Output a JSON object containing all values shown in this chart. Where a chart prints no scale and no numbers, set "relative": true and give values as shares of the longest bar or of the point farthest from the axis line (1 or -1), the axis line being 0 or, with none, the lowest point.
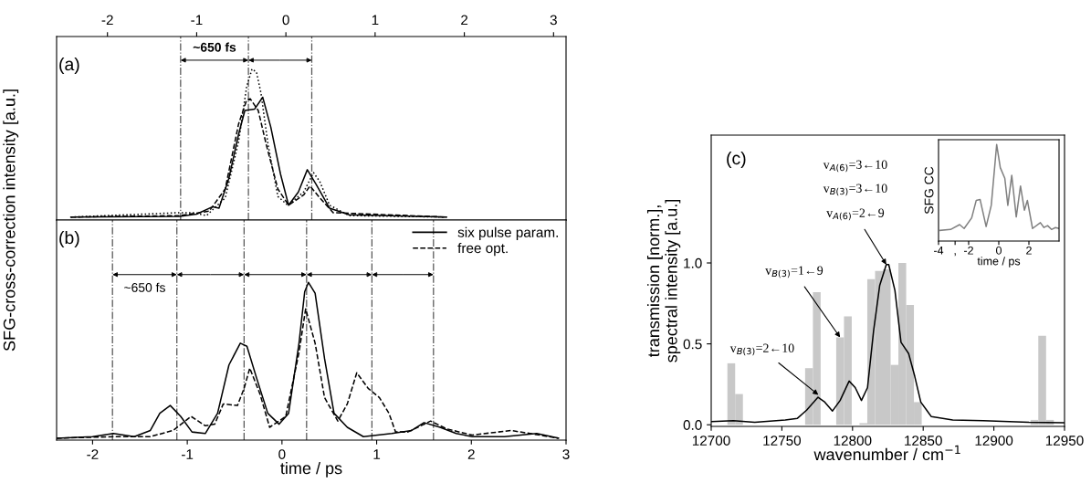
{
  "chart_data": [
    {
      "type": "line",
      "relative": true,
      "xlim": [
        -2.57,
        3.14
      ],
      "xticks": [
        -2,
        -1,
        0,
        1,
        2,
        3
      ],
      "series": [
        {
          "color": "#000000",
          "line_style": "solid",
          "x": [
            -2.41,
            -1.19,
            -1.0,
            -0.82,
            -0.75,
            -0.64,
            -0.53,
            -0.46,
            -0.35,
            -0.26,
            -0.17,
            -0.06,
            0.03,
            0.14,
            0.24,
            0.34,
            0.49,
            0.71,
            1.8
          ],
          "values": [
            0,
            0.005,
            0.02,
            0.07,
            0.06,
            0.26,
            0.56,
            0.72,
            0.73,
            0.81,
            0.61,
            0.29,
            0.08,
            0.17,
            0.32,
            0.22,
            0.06,
            0.016,
            0
          ]
        },
        {
          "color": "#000000",
          "line_style": "dashed",
          "x": [
            -2.41,
            -1.19,
            -0.86,
            -0.68,
            -0.53,
            -0.44,
            -0.4,
            -0.31,
            -0.22,
            -0.09,
            0.03,
            0.2,
            0.27,
            0.38,
            0.53,
            1.8
          ],
          "values": [
            0,
            0.01,
            0.04,
            0.19,
            0.63,
            0.79,
            0.8,
            0.72,
            0.49,
            0.19,
            0.08,
            0.15,
            0.21,
            0.13,
            0.03,
            0
          ]
        },
        {
          "color": "#000000",
          "line_style": "dotted",
          "x": [
            -2.41,
            -1.19,
            -1.04,
            -0.89,
            -0.68,
            -0.53,
            -0.44,
            -0.38,
            -0.33,
            -0.28,
            -0.2,
            -0.09,
            0.02,
            0.2,
            0.31,
            0.38,
            0.49,
            0.71,
            1.8
          ],
          "values": [
            0,
            0.03,
            0.03,
            0.01,
            0.13,
            0.51,
            0.88,
            1.0,
            0.98,
            0.84,
            0.49,
            0.14,
            0.08,
            0.17,
            0.3,
            0.24,
            0.08,
            0.01,
            0
          ]
        }
      ],
      "ref_lines": [
        {
          "axis": "x",
          "value": -1.18,
          "color": "#555555",
          "line_style": "dashdot"
        },
        {
          "axis": "x",
          "value": -0.42,
          "color": "#555555",
          "line_style": "dashdot"
        },
        {
          "axis": "x",
          "value": 0.29,
          "color": "#555555",
          "line_style": "dashdot"
        }
      ],
      "annotations": [
        "(a)",
        "~650 fs"
      ]
    },
    {
      "type": "line",
      "relative": true,
      "xlim": [
        -2.38,
        3.0
      ],
      "xticks": [
        -2,
        -1,
        0,
        1,
        2,
        3
      ],
      "xlabel": "time / ps",
      "ylabel": "SFG-cross-correction intensity [a.u.]",
      "legend": "top right",
      "series": [
        {
          "name": "six pulse param.",
          "color": "#000000",
          "line_style": "solid",
          "x": [
            -2.38,
            -2.0,
            -1.78,
            -1.56,
            -1.39,
            -1.29,
            -1.18,
            -1.07,
            -0.95,
            -0.81,
            -0.68,
            -0.56,
            -0.44,
            -0.37,
            -0.27,
            -0.15,
            -0.03,
            0.07,
            0.18,
            0.24,
            0.28,
            0.35,
            0.45,
            0.55,
            0.69,
            0.86,
            1.16,
            1.37,
            1.5,
            1.67,
            1.84,
            2.01,
            2.35,
            2.69,
            2.92
          ],
          "values": [
            0,
            0.01,
            0.03,
            0.01,
            0.05,
            0.16,
            0.21,
            0.14,
            0.04,
            0.03,
            0.16,
            0.47,
            0.61,
            0.59,
            0.39,
            0.16,
            0.09,
            0.16,
            0.61,
            0.94,
            1.0,
            0.93,
            0.51,
            0.16,
            0.07,
            0.01,
            0.03,
            0.05,
            0.1,
            0.07,
            0.03,
            0.01,
            0.01,
            0.03,
            0
          ]
        },
        {
          "name": "free opt.",
          "color": "#000000",
          "line_style": "dashed",
          "x": [
            -2.38,
            -1.78,
            -1.39,
            -1.15,
            -0.96,
            -0.81,
            -0.71,
            -0.62,
            -0.47,
            -0.4,
            -0.34,
            -0.23,
            -0.13,
            0.04,
            0.18,
            0.25,
            0.35,
            0.45,
            0.59,
            0.69,
            0.79,
            0.91,
            1.03,
            1.13,
            1.2,
            1.33,
            1.57,
            1.74,
            2.01,
            2.42,
            2.62,
            2.92
          ],
          "values": [
            0,
            0.01,
            0.01,
            0.05,
            0.14,
            0.08,
            0.09,
            0.22,
            0.21,
            0.32,
            0.45,
            0.28,
            0.07,
            0.14,
            0.55,
            0.83,
            0.61,
            0.26,
            0.11,
            0.22,
            0.42,
            0.32,
            0.26,
            0.16,
            0.04,
            0.04,
            0.11,
            0.06,
            0.02,
            0.05,
            0.03,
            0
          ]
        }
      ],
      "ref_lines": [
        {
          "axis": "x",
          "value": -1.79,
          "color": "#555555",
          "line_style": "dashdot"
        },
        {
          "axis": "x",
          "value": -1.11,
          "color": "#555555",
          "line_style": "dashdot"
        },
        {
          "axis": "x",
          "value": -0.4,
          "color": "#555555",
          "line_style": "dashdot"
        },
        {
          "axis": "x",
          "value": 0.26,
          "color": "#555555",
          "line_style": "dashdot"
        },
        {
          "axis": "x",
          "value": 0.95,
          "color": "#555555",
          "line_style": "dashdot"
        },
        {
          "axis": "x",
          "value": 1.6,
          "color": "#555555",
          "line_style": "dashdot"
        }
      ],
      "annotations": [
        "(b)",
        "~650 fs"
      ]
    },
    {
      "type": "bar",
      "x": [
        12714.2,
        12719.7,
        12769.2,
        12774.7,
        12791.2,
        12796.7,
        12807.7,
        12813.2,
        12818.7,
        12824.2,
        12829.7,
        12835.2,
        12840.7,
        12846.2,
        12928.7,
        12934.2,
        12939.7
      ],
      "values": [
        0.38,
        0.19,
        0.35,
        0.82,
        0.54,
        0.67,
        0.01,
        0.9,
        0.95,
        0.96,
        0.37,
        1.0,
        0.74,
        0.14,
        0.03,
        0.55,
        0.03
      ],
      "color": "#c8c8c8",
      "series": [
        {
          "type": "line",
          "color": "#000000",
          "x": [
            12700,
            12715.7,
            12730.8,
            12752.4,
            12761,
            12767.5,
            12775.6,
            12780.4,
            12785.8,
            12791.2,
            12797.6,
            12801.9,
            12806.3,
            12810.6,
            12814.9,
            12819.2,
            12823.9,
            12825.6,
            12830,
            12834.3,
            12839.7,
            12844,
            12848.3,
            12855.8,
            12870.9,
            12892.5,
            12924.8,
            12950
          ],
          "values": [
            0.02,
            0.025,
            0.015,
            0.03,
            0.04,
            0.09,
            0.17,
            0.14,
            0.085,
            0.15,
            0.27,
            0.23,
            0.15,
            0.23,
            0.58,
            0.86,
            0.99,
            0.99,
            0.83,
            0.51,
            0.44,
            0.3,
            0.14,
            0.05,
            0.03,
            0.025,
            0.015,
            0.013
          ]
        }
      ],
      "xlim": [
        12700,
        12950
      ],
      "xticks": [
        12700,
        12750,
        12800,
        12850,
        12900,
        12950
      ],
      "ylim": [
        -0.01,
        1.79
      ],
      "yticks": [
        {
          "value": 0,
          "label": "0.0"
        },
        {
          "value": 0.5,
          "label": "0.5"
        },
        {
          "value": 1,
          "label": "1.0"
        }
      ],
      "xlabel": "wavenumber / cm$^{−1}$",
      "ylabel": "transmission [norm.],\nspectral intensity [a.u.]",
      "annotations": [
        "(c)",
        "v$_{A(6)}$=3←10",
        "v$_{B(3)}$=3←10",
        {
          "text": "v$_{A(6)}$=2←9",
          "x": 12823.9,
          "y": 0.99
        },
        {
          "text": "v$_{B(3)}$=1←9",
          "x": 12791.2,
          "y": 0.54
        },
        {
          "text": "v$_{B(3)}$=2←10",
          "x": 12775.8,
          "y": 0.185
        }
      ]
    },
    {
      "type": "line",
      "relative": true,
      "xlim": [
        -4.0,
        4.0
      ],
      "xticks": [
        -4,
        {
          "value": -2.9,
          "label": ","
        },
        -2,
        0,
        2
      ],
      "xlabel": "time / ps",
      "ylabel": "SFG CC",
      "series": [
        {
          "color": "#808080",
          "x": [
            -3.9,
            -3.2,
            -2.6,
            -2.3,
            -1.8,
            -1.5,
            -1.24,
            -0.84,
            -0.5,
            -0.14,
            0.1,
            0.4,
            0.6,
            0.86,
            1.16,
            1.44,
            1.7,
            1.9,
            2.24,
            2.76,
            3.0,
            3.24,
            3.5,
            3.76,
            4.0
          ],
          "values": [
            0.11,
            0.12,
            0.17,
            0.13,
            0.24,
            0.42,
            0.43,
            0.15,
            0.37,
            1.0,
            0.76,
            0.65,
            0.37,
            0.68,
            0.25,
            0.57,
            0.32,
            0.42,
            0.13,
            0.19,
            0.14,
            0.16,
            0.12,
            0.14,
            0.13
          ]
        }
      ]
    }
  ]
}
